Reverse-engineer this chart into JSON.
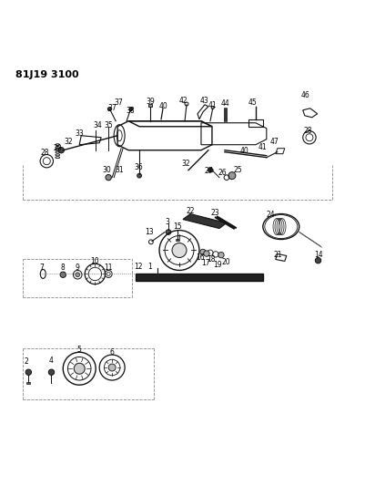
{
  "title": "81J19 3100",
  "bg_color": "#ffffff",
  "fig_width": 4.02,
  "fig_height": 5.33,
  "dpi": 100
}
